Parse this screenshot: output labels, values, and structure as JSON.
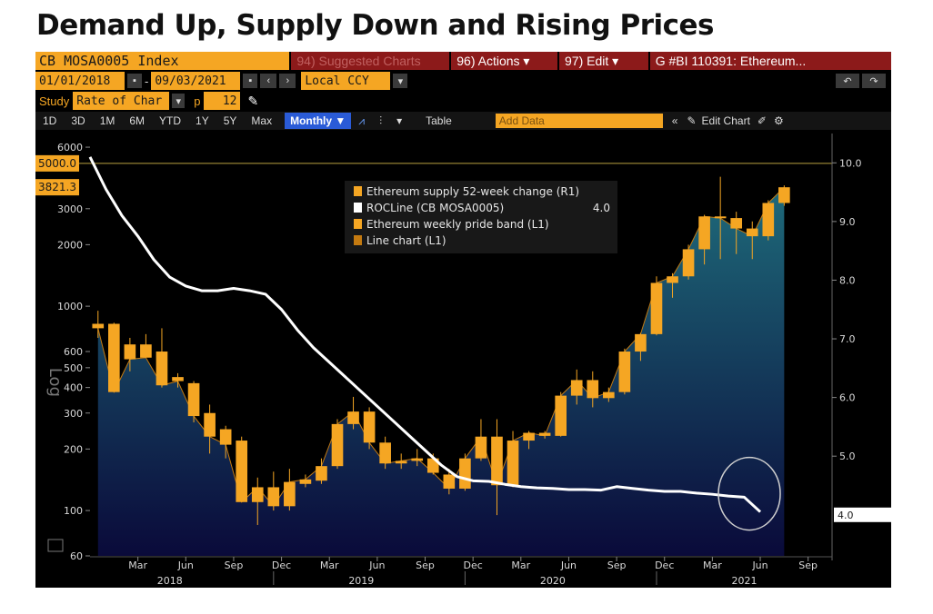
{
  "headline": "Demand Up, Supply Down and Rising Prices",
  "toolbar1": {
    "ticker": "CB MOSA0005 Index",
    "suggested": "94) Suggested Charts",
    "actions": "96) Actions ▾",
    "edit": "97) Edit ▾",
    "graph_id": "G #BI 110391: Ethereum..."
  },
  "toolbar2": {
    "start_date": "01/01/2018",
    "end_date": "09/03/2021",
    "currency": "Local CCY",
    "undo": "↶",
    "redo": "↷"
  },
  "toolbar3": {
    "study_label": "Study",
    "study_value": "Rate of Char",
    "p_label": "p",
    "p_value": "12"
  },
  "toolbar4": {
    "periods": [
      "1D",
      "3D",
      "1M",
      "6M",
      "YTD",
      "1Y",
      "5Y",
      "Max"
    ],
    "frequency": "Monthly ▼",
    "table": "Table",
    "add_data": "Add Data",
    "edit_chart": "Edit Chart"
  },
  "colors": {
    "candle": "#f5a623",
    "roc_line": "#ffffff",
    "area_top": "#1e6a7a",
    "area_bottom": "#0a0a3a"
  },
  "chart_data": {
    "type": "line",
    "legend": [
      {
        "label": "Ethereum supply 52-week change (R1)",
        "value": "",
        "color": "#f5a623"
      },
      {
        "label": "ROCLine (CB MOSA0005)",
        "value": "4.0",
        "color": "#ffffff"
      },
      {
        "label": "Ethereum weekly pride band (L1)",
        "value": "",
        "color": "#f5a623"
      },
      {
        "label": "Line chart (L1)",
        "value": "",
        "color": "#c47a10"
      }
    ],
    "left_axis": {
      "scale": "log",
      "ylim": [
        60,
        7000
      ],
      "ticks": [
        "6000",
        "3000",
        "2000",
        "1000",
        "600",
        "500",
        "400",
        "300",
        "200",
        "100",
        "60"
      ],
      "tick_values": [
        6000,
        3000,
        2000,
        1000,
        600,
        500,
        400,
        300,
        200,
        100,
        60
      ],
      "label": "Log"
    },
    "left_tags": [
      {
        "label": "5000.0",
        "value": 5000
      },
      {
        "label": "3821.3",
        "value": 3821.3
      }
    ],
    "right_axis": {
      "ylim": [
        3.3,
        10.5
      ],
      "ticks": [
        "10.0",
        "9.0",
        "8.0",
        "7.0",
        "6.0",
        "5.0"
      ],
      "tick_values": [
        10,
        9,
        8,
        7,
        6,
        5
      ]
    },
    "right_tag": {
      "label": "4.0",
      "value": 4.0
    },
    "x_months": [
      "Mar",
      "Jun",
      "Sep",
      "Dec",
      "Mar",
      "Jun",
      "Sep",
      "Dec",
      "Mar",
      "Jun",
      "Sep",
      "Dec",
      "Mar",
      "Jun",
      "Sep"
    ],
    "x_month_positions": [
      3,
      6,
      9,
      12,
      15,
      18,
      21,
      24,
      27,
      30,
      33,
      36,
      39,
      42,
      45
    ],
    "x_years": [
      "2018",
      "2019",
      "2020",
      "2021"
    ],
    "x_year_positions": [
      5,
      17,
      29,
      41
    ],
    "x_range": [
      0,
      46.5
    ],
    "candles": [
      {
        "o": 820,
        "h": 950,
        "l": 700,
        "c": 780
      },
      {
        "o": 820,
        "h": 830,
        "l": 380,
        "c": 380
      },
      {
        "o": 650,
        "h": 700,
        "l": 480,
        "c": 550
      },
      {
        "o": 650,
        "h": 730,
        "l": 560,
        "c": 560
      },
      {
        "o": 600,
        "h": 780,
        "l": 400,
        "c": 410
      },
      {
        "o": 450,
        "h": 470,
        "l": 400,
        "c": 430
      },
      {
        "o": 420,
        "h": 430,
        "l": 270,
        "c": 290
      },
      {
        "o": 300,
        "h": 330,
        "l": 190,
        "c": 230
      },
      {
        "o": 250,
        "h": 260,
        "l": 180,
        "c": 210
      },
      {
        "o": 220,
        "h": 230,
        "l": 110,
        "c": 110
      },
      {
        "o": 110,
        "h": 145,
        "l": 85,
        "c": 130
      },
      {
        "o": 130,
        "h": 155,
        "l": 100,
        "c": 105
      },
      {
        "o": 105,
        "h": 160,
        "l": 100,
        "c": 138
      },
      {
        "o": 135,
        "h": 150,
        "l": 130,
        "c": 142
      },
      {
        "o": 140,
        "h": 180,
        "l": 135,
        "c": 165
      },
      {
        "o": 165,
        "h": 280,
        "l": 160,
        "c": 265
      },
      {
        "o": 265,
        "h": 360,
        "l": 250,
        "c": 305
      },
      {
        "o": 305,
        "h": 320,
        "l": 200,
        "c": 215
      },
      {
        "o": 215,
        "h": 230,
        "l": 160,
        "c": 170
      },
      {
        "o": 170,
        "h": 190,
        "l": 160,
        "c": 175
      },
      {
        "o": 175,
        "h": 200,
        "l": 165,
        "c": 180
      },
      {
        "o": 180,
        "h": 190,
        "l": 150,
        "c": 153
      },
      {
        "o": 150,
        "h": 160,
        "l": 120,
        "c": 128
      },
      {
        "o": 128,
        "h": 190,
        "l": 125,
        "c": 180
      },
      {
        "o": 180,
        "h": 280,
        "l": 175,
        "c": 230
      },
      {
        "o": 230,
        "h": 280,
        "l": 95,
        "c": 133
      },
      {
        "o": 133,
        "h": 245,
        "l": 130,
        "c": 220
      },
      {
        "o": 220,
        "h": 245,
        "l": 200,
        "c": 240
      },
      {
        "o": 240,
        "h": 245,
        "l": 225,
        "c": 232
      },
      {
        "o": 232,
        "h": 380,
        "l": 230,
        "c": 365
      },
      {
        "o": 365,
        "h": 490,
        "l": 330,
        "c": 435
      },
      {
        "o": 435,
        "h": 480,
        "l": 320,
        "c": 355
      },
      {
        "o": 355,
        "h": 400,
        "l": 340,
        "c": 380
      },
      {
        "o": 380,
        "h": 620,
        "l": 370,
        "c": 600
      },
      {
        "o": 600,
        "h": 740,
        "l": 540,
        "c": 730
      },
      {
        "o": 730,
        "h": 1400,
        "l": 720,
        "c": 1300
      },
      {
        "o": 1300,
        "h": 1450,
        "l": 1100,
        "c": 1400
      },
      {
        "o": 1400,
        "h": 2000,
        "l": 1350,
        "c": 1900
      },
      {
        "o": 1900,
        "h": 2800,
        "l": 1600,
        "c": 2750
      },
      {
        "o": 2750,
        "h": 4300,
        "l": 1700,
        "c": 2700
      },
      {
        "o": 2700,
        "h": 2900,
        "l": 1800,
        "c": 2400
      },
      {
        "o": 2400,
        "h": 2600,
        "l": 1700,
        "c": 2200
      },
      {
        "o": 2200,
        "h": 3300,
        "l": 2100,
        "c": 3200
      },
      {
        "o": 3200,
        "h": 3900,
        "l": 3100,
        "c": 3820
      }
    ],
    "roc_line": [
      {
        "x": 0,
        "y": 10.1
      },
      {
        "x": 1,
        "y": 9.55
      },
      {
        "x": 2,
        "y": 9.1
      },
      {
        "x": 3,
        "y": 8.75
      },
      {
        "x": 4,
        "y": 8.35
      },
      {
        "x": 5,
        "y": 8.05
      },
      {
        "x": 6,
        "y": 7.9
      },
      {
        "x": 7,
        "y": 7.82
      },
      {
        "x": 8,
        "y": 7.82
      },
      {
        "x": 9,
        "y": 7.86
      },
      {
        "x": 10,
        "y": 7.82
      },
      {
        "x": 11,
        "y": 7.76
      },
      {
        "x": 12,
        "y": 7.5
      },
      {
        "x": 13,
        "y": 7.15
      },
      {
        "x": 14,
        "y": 6.85
      },
      {
        "x": 15,
        "y": 6.6
      },
      {
        "x": 16,
        "y": 6.35
      },
      {
        "x": 17,
        "y": 6.1
      },
      {
        "x": 18,
        "y": 5.85
      },
      {
        "x": 19,
        "y": 5.6
      },
      {
        "x": 20,
        "y": 5.35
      },
      {
        "x": 21,
        "y": 5.1
      },
      {
        "x": 22,
        "y": 4.85
      },
      {
        "x": 23,
        "y": 4.65
      },
      {
        "x": 24,
        "y": 4.58
      },
      {
        "x": 25,
        "y": 4.57
      },
      {
        "x": 26,
        "y": 4.52
      },
      {
        "x": 27,
        "y": 4.48
      },
      {
        "x": 28,
        "y": 4.46
      },
      {
        "x": 29,
        "y": 4.45
      },
      {
        "x": 30,
        "y": 4.43
      },
      {
        "x": 31,
        "y": 4.43
      },
      {
        "x": 32,
        "y": 4.42
      },
      {
        "x": 33,
        "y": 4.48
      },
      {
        "x": 34,
        "y": 4.45
      },
      {
        "x": 35,
        "y": 4.42
      },
      {
        "x": 36,
        "y": 4.4
      },
      {
        "x": 37,
        "y": 4.4
      },
      {
        "x": 38,
        "y": 4.37
      },
      {
        "x": 39,
        "y": 4.35
      },
      {
        "x": 40,
        "y": 4.32
      },
      {
        "x": 41,
        "y": 4.3
      },
      {
        "x": 42,
        "y": 4.05
      }
    ]
  }
}
